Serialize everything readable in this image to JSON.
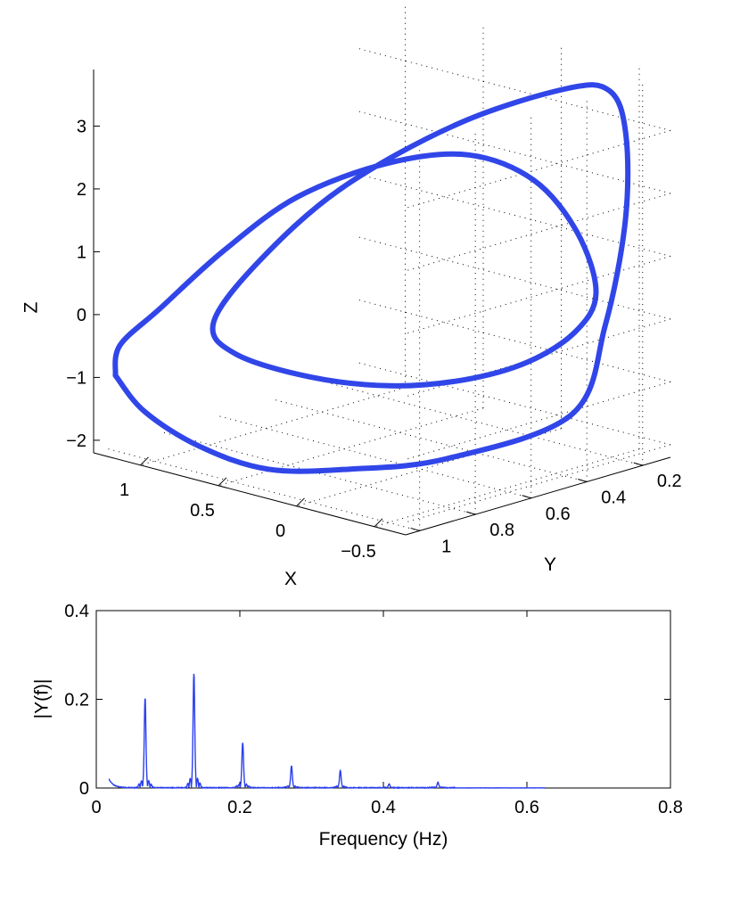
{
  "chart_data": [
    {
      "type": "line3d",
      "title": "",
      "xlabel": "X",
      "ylabel": "Y",
      "zlabel": "Z",
      "x_ticks": [
        "1",
        "0.5",
        "0",
        "−0.5"
      ],
      "y_ticks": [
        "0.2",
        "0.4",
        "0.6",
        "0.8",
        "1"
      ],
      "z_ticks": [
        "3",
        "2",
        "1",
        "0",
        "−1",
        "−2"
      ],
      "xlim": [
        -0.7,
        1.3
      ],
      "ylim": [
        0.1,
        1.05
      ],
      "zlim": [
        -2.2,
        3.9
      ],
      "grid": true,
      "color": "#3146e8",
      "series": [
        {
          "x": [
            1.25,
            1.1,
            0.8,
            0.45,
            0.1,
            -0.25,
            -0.6,
            -0.55,
            -0.5,
            -0.45,
            -0.4,
            -0.3,
            -0.05,
            0.25,
            0.55,
            0.8,
            0.8,
            0.5,
            0.2,
            -0.05,
            -0.28,
            -0.45,
            -0.58,
            -0.55,
            -0.45,
            -0.3,
            -0.05,
            0.3,
            0.65,
            1.0,
            1.22,
            1.25
          ],
          "y": [
            1.0,
            0.98,
            0.95,
            0.9,
            0.8,
            0.65,
            0.4,
            0.25,
            0.15,
            0.12,
            0.15,
            0.25,
            0.5,
            0.75,
            0.88,
            0.9,
            0.82,
            0.72,
            0.6,
            0.48,
            0.38,
            0.3,
            0.3,
            0.35,
            0.45,
            0.6,
            0.75,
            0.88,
            0.95,
            0.98,
            1.0,
            1.0
          ],
          "z": [
            -1.0,
            -1.5,
            -1.9,
            -2.1,
            -2.0,
            -1.8,
            -1.2,
            0.0,
            1.5,
            2.8,
            3.5,
            3.6,
            3.2,
            2.3,
            1.1,
            0.0,
            -0.6,
            -0.9,
            -1.0,
            -0.9,
            -0.6,
            -0.1,
            0.6,
            1.6,
            2.5,
            3.0,
            2.9,
            2.3,
            1.3,
            0.2,
            -0.5,
            -1.0
          ]
        }
      ]
    },
    {
      "type": "line",
      "title": "",
      "xlabel": "Frequency (Hz)",
      "ylabel": "|Y(f)|",
      "x_ticks": [
        "0",
        "0.2",
        "0.4",
        "0.6",
        "0.8"
      ],
      "y_ticks": [
        "0",
        "0.2",
        "0.4"
      ],
      "xlim": [
        0,
        0.8
      ],
      "ylim": [
        0,
        0.4
      ],
      "color": "#2a3ff0",
      "x_range": [
        0.0175,
        0.625
      ],
      "peaks": [
        {
          "f": 0.068,
          "amp": 0.2
        },
        {
          "f": 0.136,
          "amp": 0.255
        },
        {
          "f": 0.204,
          "amp": 0.1
        },
        {
          "f": 0.272,
          "amp": 0.048
        },
        {
          "f": 0.34,
          "amp": 0.038
        },
        {
          "f": 0.408,
          "amp": 0.008
        },
        {
          "f": 0.476,
          "amp": 0.012
        }
      ],
      "start_value": 0.02
    }
  ]
}
